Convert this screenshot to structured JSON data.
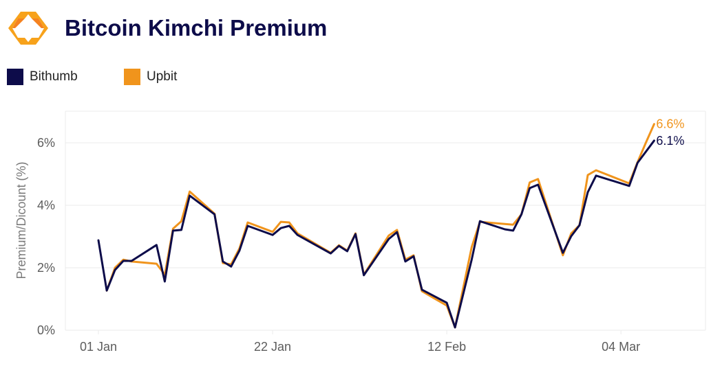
{
  "header": {
    "title": "Bitcoin Kimchi Premium",
    "logo_icon": "hexagon-brackets-logo"
  },
  "legend": [
    {
      "label": "Bithumb",
      "color": "#0d0c4a"
    },
    {
      "label": "Upbit",
      "color": "#f0941c"
    }
  ],
  "colors": {
    "bithumb": "#0d0c4a",
    "upbit": "#f0941c",
    "grid": "#ebebeb",
    "tick_text": "#5c5c5c",
    "title": "#0d0c4a"
  },
  "chart_data": {
    "type": "line",
    "title": "Bitcoin Kimchi Premium",
    "xlabel": "",
    "ylabel": "Premium/Dicount (%)",
    "ylim": [
      -0.2,
      7.0
    ],
    "yticks": [
      0,
      2,
      4,
      6
    ],
    "ytick_labels": [
      "0%",
      "2%",
      "4%",
      "6%"
    ],
    "xtick_labels": [
      "01 Jan",
      "22 Jan",
      "12 Feb",
      "04 Mar"
    ],
    "xtick_days": [
      0,
      21,
      42,
      63
    ],
    "x_unit": "days since 01 Jan",
    "grid": true,
    "legend_position": "top-left",
    "end_labels": {
      "Bithumb": "6.1%",
      "Upbit": "6.6%"
    },
    "series": [
      {
        "name": "Bithumb",
        "color": "#0d0c4a",
        "x": [
          0,
          1,
          2,
          3,
          4,
          7,
          8,
          9,
          10,
          11,
          14,
          15,
          16,
          17,
          18,
          21,
          22,
          23,
          24,
          28,
          29,
          30,
          31,
          32,
          35,
          36,
          37,
          38,
          39,
          42,
          43,
          45,
          46,
          49,
          50,
          51,
          52,
          53,
          56,
          57,
          58,
          59,
          60,
          64,
          65,
          67
        ],
        "values": [
          2.88,
          1.27,
          1.93,
          2.22,
          2.22,
          2.73,
          1.56,
          3.19,
          3.21,
          4.31,
          3.71,
          2.2,
          2.04,
          2.55,
          3.34,
          3.05,
          3.27,
          3.34,
          3.05,
          2.46,
          2.7,
          2.53,
          3.08,
          1.76,
          2.92,
          3.14,
          2.2,
          2.37,
          1.3,
          0.88,
          0.09,
          2.26,
          3.49,
          3.23,
          3.19,
          3.71,
          4.55,
          4.66,
          2.48,
          3.01,
          3.36,
          4.42,
          4.95,
          4.62,
          5.36,
          6.07
        ]
      },
      {
        "name": "Upbit",
        "color": "#f0941c",
        "x": [
          1,
          2,
          3,
          4,
          7,
          8,
          9,
          10,
          11,
          14,
          15,
          16,
          17,
          18,
          21,
          22,
          23,
          24,
          28,
          29,
          30,
          31,
          32,
          35,
          36,
          37,
          38,
          39,
          42,
          43,
          45,
          46,
          49,
          50,
          51,
          52,
          53,
          56,
          57,
          58,
          59,
          60,
          64,
          65,
          66,
          67
        ],
        "values": [
          1.27,
          2.0,
          2.26,
          2.2,
          2.13,
          1.78,
          3.25,
          3.49,
          4.44,
          3.73,
          2.15,
          2.11,
          2.62,
          3.45,
          3.15,
          3.47,
          3.45,
          3.1,
          2.48,
          2.72,
          2.55,
          3.1,
          1.78,
          3.03,
          3.21,
          2.26,
          2.4,
          1.25,
          0.79,
          0.09,
          2.66,
          3.47,
          3.4,
          3.38,
          3.71,
          4.73,
          4.84,
          2.4,
          3.1,
          3.36,
          4.97,
          5.12,
          4.7,
          5.38,
          6.0,
          6.6
        ]
      }
    ]
  }
}
